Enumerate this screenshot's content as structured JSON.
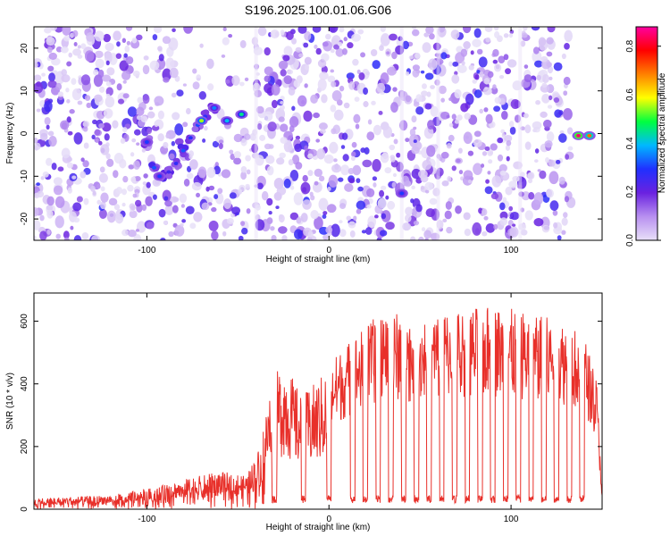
{
  "title": "S196.2025.100.01.06.G06",
  "chart_data": [
    {
      "type": "heatmap",
      "xlabel": "Height of straight line (km)",
      "ylabel": "Frequency (Hz)",
      "xlim": [
        -162,
        150
      ],
      "ylim": [
        -25,
        25
      ],
      "xticks": [
        -100,
        0,
        100
      ],
      "yticks": [
        -20,
        -10,
        0,
        10,
        20
      ],
      "colorbar": {
        "label": "Normalized spectral amplitude",
        "range": [
          0.0,
          0.88
        ],
        "ticks": [
          0.0,
          0.2,
          0.4,
          0.6,
          0.8
        ],
        "colors": [
          "#e8e0f8",
          "#b890f0",
          "#6a22e0",
          "#2030ff",
          "#00b8ff",
          "#00ff40",
          "#ffff00",
          "#ff8000",
          "#ff0000",
          "#ff00a0"
        ]
      },
      "features": [
        {
          "kind": "track",
          "points": [
            [
              -100,
              -2
            ],
            [
              -96,
              -8
            ],
            [
              -92,
              -10
            ],
            [
              -88,
              -9
            ],
            [
              -84,
              -7
            ],
            [
              -80,
              -4
            ],
            [
              -76,
              -1
            ],
            [
              -72,
              2
            ],
            [
              -68,
              4
            ],
            [
              -64,
              6
            ]
          ],
          "amplitude": 0.45
        },
        {
          "kind": "blob",
          "x": -70,
          "y": 3,
          "amplitude": 0.55
        },
        {
          "kind": "blob",
          "x": -63,
          "y": 6,
          "amplitude": 0.35
        },
        {
          "kind": "blob",
          "x": -56,
          "y": 3,
          "amplitude": 0.4
        },
        {
          "kind": "blob",
          "x": -48,
          "y": 4.5,
          "amplitude": 0.45
        },
        {
          "kind": "blob",
          "x": -93,
          "y": -10,
          "amplitude": 0.3
        },
        {
          "kind": "blob",
          "x": -100,
          "y": -2,
          "amplitude": 0.3
        },
        {
          "kind": "blob",
          "x": 40,
          "y": -14,
          "amplitude": 0.3
        },
        {
          "kind": "blob",
          "x": 137,
          "y": -0.5,
          "amplitude": 0.85
        },
        {
          "kind": "blob",
          "x": 143,
          "y": -0.5,
          "amplitude": 0.7
        }
      ]
    },
    {
      "type": "line",
      "xlabel": "Height of straight line (km)",
      "ylabel": "SNR (10 * v/v)",
      "xlim": [
        -162,
        150
      ],
      "ylim": [
        0,
        690
      ],
      "xticks": [
        -100,
        0,
        100
      ],
      "yticks": [
        0,
        200,
        400,
        600
      ],
      "color": "#e8302a",
      "envelope": [
        [
          -162,
          35
        ],
        [
          -120,
          45
        ],
        [
          -95,
          70
        ],
        [
          -80,
          95
        ],
        [
          -60,
          120
        ],
        [
          -45,
          110
        ],
        [
          -38,
          200
        ],
        [
          -32,
          400
        ],
        [
          -25,
          480
        ],
        [
          -15,
          360
        ],
        [
          -5,
          420
        ],
        [
          5,
          500
        ],
        [
          15,
          560
        ],
        [
          25,
          610
        ],
        [
          35,
          630
        ],
        [
          50,
          620
        ],
        [
          70,
          640
        ],
        [
          90,
          650
        ],
        [
          110,
          630
        ],
        [
          130,
          600
        ],
        [
          140,
          560
        ],
        [
          147,
          420
        ],
        [
          150,
          60
        ]
      ],
      "dips": [
        -30,
        -14,
        0,
        13,
        20,
        27,
        34,
        41,
        48,
        55,
        62,
        69,
        76,
        83,
        90,
        97,
        104,
        111,
        118,
        125,
        132,
        139
      ],
      "dip_floor": 20
    }
  ]
}
